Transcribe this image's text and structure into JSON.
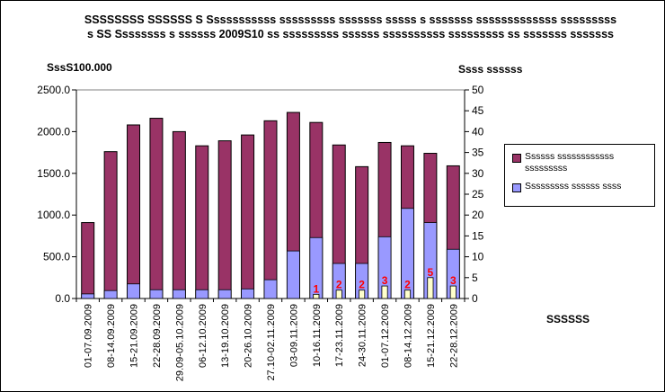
{
  "title": "SSSSSSSS SSSSSS S Sssssssssss sssssssss sssssss sssss s sssssss sssssssssssss sssssssss s SS Ssssssss s ssssss 2009S10 ss sssssssss ssssss ssssssssss sssssssss ss sssssss sssssss",
  "left_axis_unit": "SssS100.000",
  "right_axis_unit": "Ssss ssssss",
  "note": "SSSSSS",
  "colors": {
    "series_a": "#993366",
    "series_b": "#9999ff",
    "series_c": "#ffffcc",
    "data_label": "#ff0000"
  },
  "chart_data": {
    "type": "bar",
    "categories": [
      "01-07.09.2009",
      "08-14.09.2009",
      "15-21.09.2009",
      "22-28.09.2009",
      "29.09-05.10.2009",
      "06-12.10.2009",
      "13-19.10.2009",
      "20-26.10.2009",
      "27.10-02.11.2009",
      "03-09.11.2009",
      "10-16.11.2009",
      "17-23.11.2009",
      "24-30.11.2009",
      "01-07.12.2009",
      "08-14.12.2009",
      "15-21.12.2009",
      "22-28.12.2009"
    ],
    "y_left": {
      "min": 0,
      "max": 2500,
      "ticks": [
        "0.0",
        "500.0",
        "1000.0",
        "1500.0",
        "2000.0",
        "2500.0"
      ]
    },
    "y_right": {
      "min": 0,
      "max": 50,
      "ticks": [
        "0",
        "5",
        "10",
        "15",
        "20",
        "25",
        "30",
        "35",
        "40",
        "45",
        "50"
      ]
    },
    "series": [
      {
        "name": "Ssssss ssssssssssss sssssssss",
        "axis": "left",
        "values": [
          910,
          1760,
          2080,
          2160,
          2000,
          1830,
          1890,
          1960,
          2130,
          2230,
          2110,
          1840,
          1580,
          1870,
          1830,
          1740,
          1590
        ]
      },
      {
        "name": "Sssssssss ssssss ssss",
        "axis": "left",
        "values": [
          55,
          95,
          175,
          105,
          105,
          105,
          105,
          115,
          225,
          570,
          730,
          420,
          420,
          740,
          1080,
          910,
          590
        ]
      },
      {
        "axis": "right",
        "values": [
          null,
          null,
          null,
          null,
          null,
          null,
          null,
          null,
          null,
          null,
          1,
          2,
          2,
          3,
          2,
          5,
          3
        ]
      }
    ]
  }
}
